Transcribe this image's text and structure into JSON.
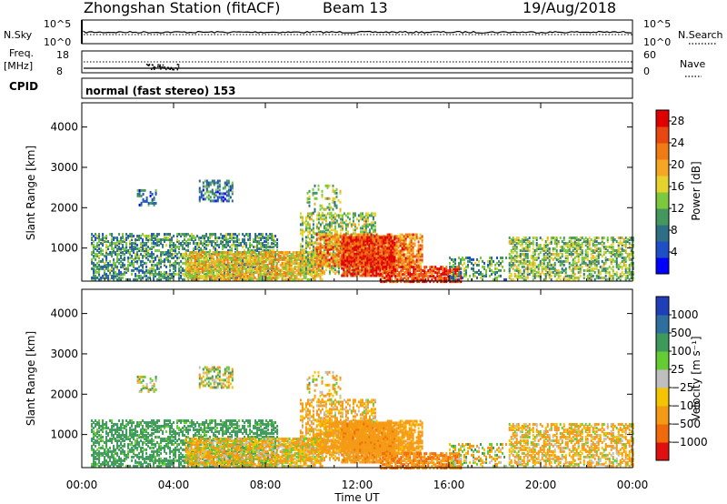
{
  "header": {
    "station": "Zhongshan Station (fitACF)",
    "beam": "Beam 13",
    "date": "19/Aug/2018"
  },
  "panels": {
    "nsky_label": "N.Sky",
    "nsky_ticks": [
      "10^5",
      "10^0"
    ],
    "nsearch_label": "N.Search",
    "nsearch_ticks": [
      "10^5",
      "10^0"
    ],
    "freq_label_top": "Freq.",
    "freq_label_unit": "[MHz]",
    "freq_ticks": [
      "18",
      "8"
    ],
    "nave_label": "Nave",
    "nave_ticks": [
      "60",
      "0"
    ],
    "cpid_label": "CPID",
    "cpid_text": "normal (fast stereo) 153"
  },
  "chart_data": [
    {
      "type": "heatmap",
      "name": "power",
      "ylabel": "Slant Range [km]",
      "yticks": [
        "1000",
        "2000",
        "3000",
        "4000"
      ],
      "ytick_values": [
        1000,
        2000,
        3000,
        4000
      ],
      "ylim": [
        180,
        4600
      ],
      "xlim": [
        0,
        24
      ],
      "colorbar_label": "Power [dB]",
      "colorbar_ticks": [
        "4",
        "8",
        "12",
        "16",
        "20",
        "24",
        "28"
      ],
      "colorbar_tick_values": [
        4,
        8,
        12,
        16,
        20,
        24,
        28
      ],
      "colorbar_range": [
        0,
        30
      ],
      "colorbar_colors": [
        "#0000ff",
        "#1e4fc9",
        "#2f6f86",
        "#44985e",
        "#7dc93e",
        "#e3d32c",
        "#f5a623",
        "#f07b14",
        "#e8480f",
        "#e00000"
      ]
    },
    {
      "type": "heatmap",
      "name": "velocity",
      "ylabel": "Slant Range [km]",
      "yticks": [
        "1000",
        "2000",
        "3000",
        "4000"
      ],
      "ytick_values": [
        1000,
        2000,
        3000,
        4000
      ],
      "ylim": [
        180,
        4600
      ],
      "xlim": [
        0,
        24
      ],
      "colorbar_label": "Velocity [m s⁻¹]",
      "colorbar_ticks": [
        "1000",
        "500",
        "100",
        "25",
        "−25",
        "−100",
        "−500",
        "−1000"
      ],
      "colorbar_colors": [
        "#1f3fb8",
        "#2f6fa0",
        "#3d9a5a",
        "#66cc33",
        "#bfbfbf",
        "#f5c400",
        "#f59a14",
        "#f06a0a",
        "#e01010"
      ]
    }
  ],
  "xaxis": {
    "label": "Time UT",
    "ticks": [
      "00:00",
      "04:00",
      "08:00",
      "12:00",
      "16:00",
      "20:00",
      "00:00"
    ],
    "tick_values": [
      0,
      4,
      8,
      12,
      16,
      20,
      24
    ]
  }
}
